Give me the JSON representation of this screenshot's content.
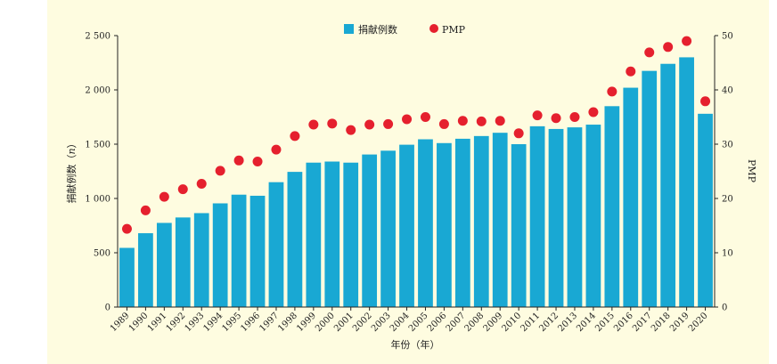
{
  "chart_data": {
    "type": "bar",
    "categories": [
      "1989",
      "1990",
      "1991",
      "1992",
      "1993",
      "1994",
      "1995",
      "1996",
      "1997",
      "1998",
      "1999",
      "2000",
      "2001",
      "2002",
      "2003",
      "2004",
      "2005",
      "2006",
      "2007",
      "2008",
      "2009",
      "2010",
      "2011",
      "2012",
      "2013",
      "2014",
      "2015",
      "2016",
      "2017",
      "2018",
      "2019",
      "2020"
    ],
    "series": [
      {
        "name": "捐献例数",
        "kind": "bar",
        "axis": "left",
        "color": "#19a8d3",
        "values": [
          545,
          680,
          775,
          825,
          865,
          955,
          1035,
          1025,
          1150,
          1245,
          1330,
          1340,
          1330,
          1405,
          1440,
          1495,
          1545,
          1510,
          1550,
          1575,
          1605,
          1500,
          1665,
          1640,
          1655,
          1680,
          1850,
          2020,
          2175,
          2240,
          2300,
          1780
        ]
      },
      {
        "name": "PMP",
        "kind": "dot",
        "axis": "right",
        "color": "#e5202e",
        "values": [
          14.4,
          17.8,
          20.3,
          21.7,
          22.7,
          25.1,
          27.0,
          26.8,
          29.0,
          31.5,
          33.6,
          33.8,
          32.6,
          33.6,
          33.7,
          34.6,
          35.0,
          33.7,
          34.3,
          34.2,
          34.3,
          32.0,
          35.3,
          34.8,
          35.0,
          35.9,
          39.7,
          43.4,
          46.9,
          47.9,
          49.0,
          37.9
        ]
      }
    ],
    "ylabel": "捐献例数（n）",
    "ylabel_parts": [
      "捐献例数（",
      "n",
      "）"
    ],
    "y2label": "PMP",
    "xlabel": "年份（年）",
    "ylim": [
      0,
      2500
    ],
    "y2lim": [
      0,
      50
    ],
    "yticks": [
      0,
      500,
      1000,
      1500,
      2000,
      2500
    ],
    "yticklabels": [
      "0",
      "500",
      "1 000",
      "1 500",
      "2 000",
      "2 500"
    ],
    "y2ticks": [
      0,
      10,
      20,
      30,
      40,
      50
    ],
    "y2ticklabels": [
      "0",
      "10",
      "20",
      "30",
      "40",
      "50"
    ],
    "grid": false,
    "legend_position": "top-center",
    "background_color": "#fefce0"
  }
}
